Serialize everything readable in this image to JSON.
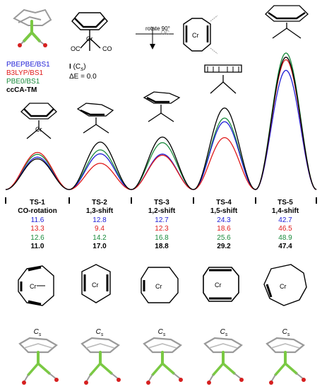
{
  "header": {
    "rotate_label": "rotate 90°",
    "structure_label": "I",
    "structure_sym": "(C",
    "structure_sym_sub": "s",
    "structure_sym_end": ")",
    "delta_e_label": "ΔE = 0.0"
  },
  "legend": {
    "items": [
      {
        "label": "PBEPBE/BS1",
        "color": "#1f1fd6"
      },
      {
        "label": "B3LYP/BS1",
        "color": "#e01b1b"
      },
      {
        "label": "PBE0/BS1",
        "color": "#1a8a3c"
      },
      {
        "label": "ccCA-TM",
        "color": "#000000"
      }
    ]
  },
  "atoms": {
    "metal": "Cr",
    "ligand": "OC",
    "ligand_r": "CO"
  },
  "minimum_marker": "I",
  "chart_data": {
    "type": "line",
    "categories": [
      "TS-1",
      "TS-2",
      "TS-3",
      "TS-4",
      "TS-5"
    ],
    "descriptions": [
      "CO-rotation",
      "1,3-shift",
      "1,2-shift",
      "1,5-shift",
      "1,4-shift"
    ],
    "series": [
      {
        "name": "PBEPBE/BS1",
        "color": "#1f1fd6",
        "values": [
          11.6,
          12.8,
          12.7,
          24.3,
          42.7
        ]
      },
      {
        "name": "B3LYP/BS1",
        "color": "#e01b1b",
        "values": [
          13.3,
          9.4,
          12.3,
          18.6,
          46.5
        ]
      },
      {
        "name": "PBE0/BS1",
        "color": "#1a8a3c",
        "values": [
          12.6,
          14.2,
          16.8,
          25.6,
          48.9
        ]
      },
      {
        "name": "ccCA-TM",
        "color": "#000000",
        "values": [
          11.0,
          17.0,
          18.8,
          29.2,
          47.4
        ]
      }
    ],
    "ylim": [
      0,
      50
    ]
  },
  "bottom": {
    "symmetry": [
      "C",
      "C",
      "C",
      "C",
      "C"
    ],
    "symmetry_sub": "s"
  }
}
